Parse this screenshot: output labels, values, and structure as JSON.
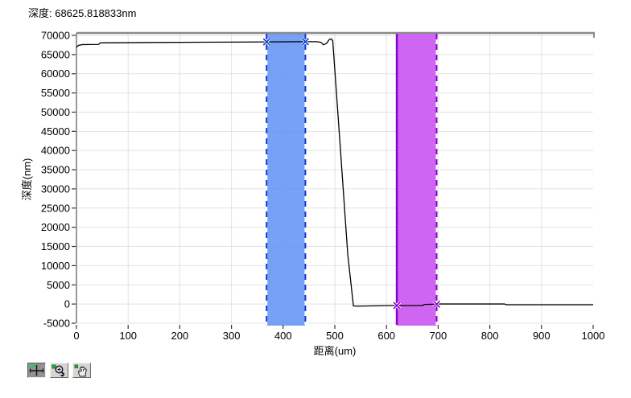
{
  "header": {
    "title": "深度: 68625.818833nm"
  },
  "chart_data": {
    "type": "line",
    "title": "",
    "xlabel": "距离(um)",
    "ylabel": "深度(nm)",
    "xlim": [
      0,
      1000
    ],
    "ylim": [
      -5000,
      70000
    ],
    "x_ticks": [
      0,
      100,
      200,
      300,
      400,
      500,
      600,
      700,
      800,
      900,
      1000
    ],
    "y_ticks": [
      70000,
      65000,
      60000,
      55000,
      50000,
      45000,
      40000,
      35000,
      30000,
      25000,
      20000,
      15000,
      10000,
      5000,
      0,
      -5000
    ],
    "grid": true,
    "legend": "none",
    "series": [
      {
        "name": "depth-profile",
        "color": "#000000",
        "x": [
          0,
          4,
          12,
          43,
          46,
          150,
          300,
          368,
          443,
          465,
          473,
          478,
          484,
          489,
          493,
          496,
          510,
          525,
          536,
          545,
          600,
          620,
          670,
          673,
          697,
          700,
          828,
          832,
          1000
        ],
        "y": [
          66900,
          67400,
          67600,
          67650,
          68050,
          68150,
          68250,
          68300,
          68350,
          68350,
          68200,
          67550,
          67900,
          68900,
          69100,
          68600,
          42000,
          13000,
          -500,
          -550,
          -420,
          -390,
          -380,
          -100,
          -30,
          20,
          20,
          -180,
          -180
        ]
      }
    ],
    "cursor_bands": [
      {
        "name": "plateau-cursor-band",
        "fill": "#5e90f2",
        "fill_opacity": 0.85,
        "edge_color": "#0a36cf",
        "x_start": 368,
        "x_end": 443,
        "marker_values": [
          68300,
          68350
        ],
        "left_edge": "dashed",
        "right_edge": "dashed"
      },
      {
        "name": "floor-cursor-band",
        "fill": "#ce66f2",
        "fill_opacity": 1,
        "edge_color": "#8a00d4",
        "x_start": 620,
        "x_end": 697,
        "marker_values": [
          -390,
          -30
        ],
        "left_edge": "solid",
        "right_edge": "dashed"
      }
    ]
  },
  "toolbar": {
    "buttons": [
      {
        "icon": "crosshair-cursor-icon",
        "tool": "cursor",
        "pressed": true
      },
      {
        "icon": "zoom-magnifier-icon",
        "tool": "zoom",
        "pressed": false
      },
      {
        "icon": "pan-hand-icon",
        "tool": "pan",
        "pressed": false
      }
    ]
  },
  "colors": {
    "plot_border_top": "#8a8a8a",
    "plot_border_left": "#555555",
    "axis_text": "#000000",
    "grid": "#e2e2e2",
    "tick": "#333333",
    "band_blue": "#5e90f2",
    "band_blue_edge": "#0a36cf",
    "band_purple": "#ce66f2",
    "band_purple_edge": "#8a00d4",
    "tool_green": "#00d040"
  }
}
